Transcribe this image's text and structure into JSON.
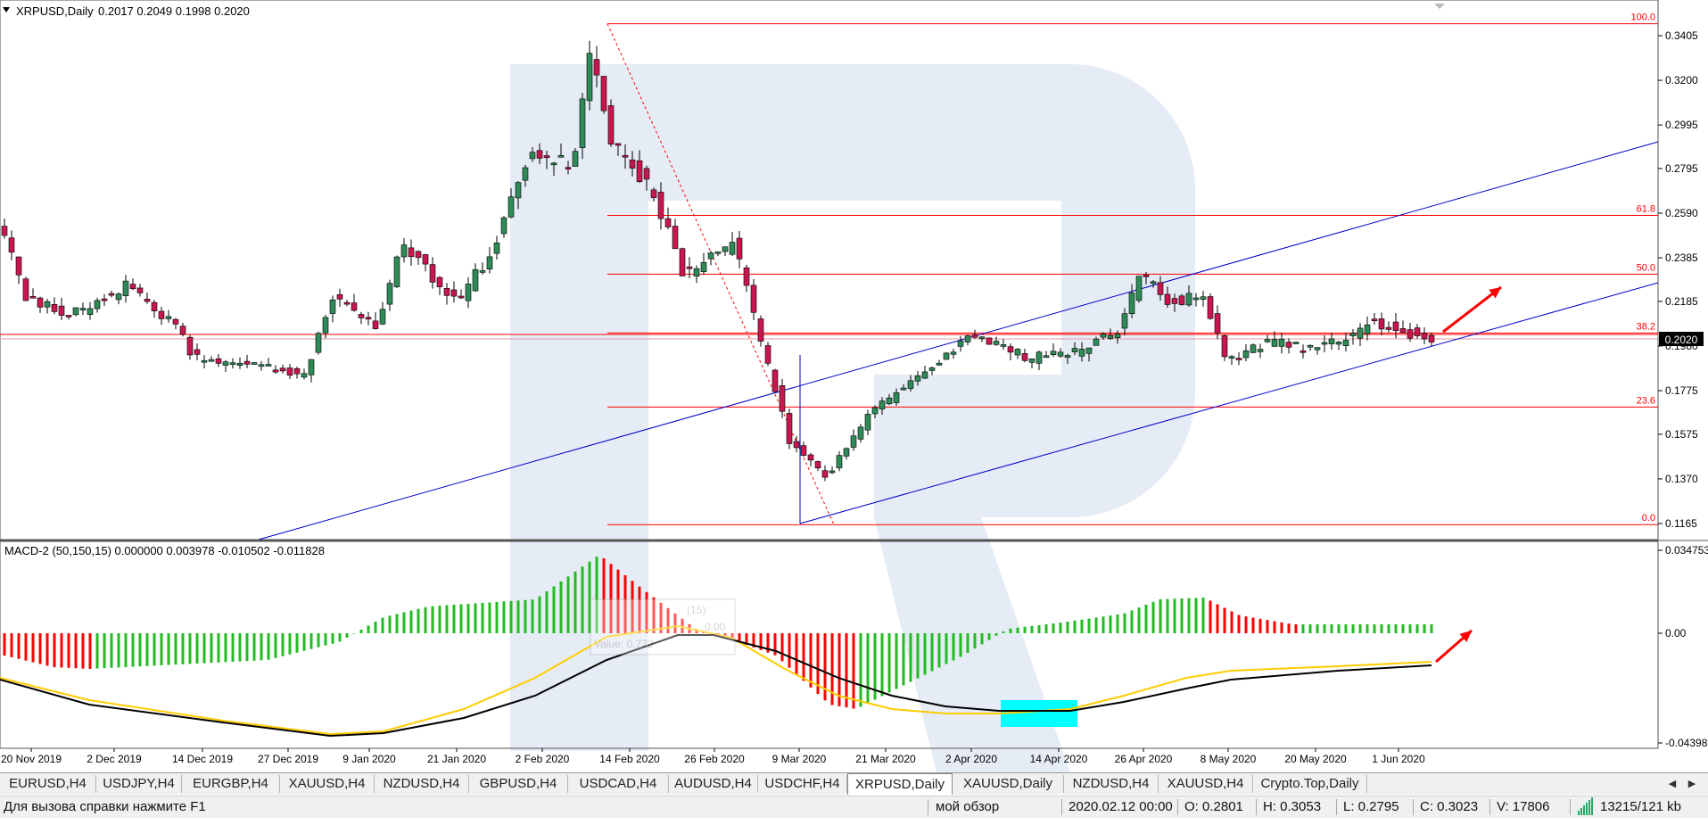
{
  "chart": {
    "symbol_info": "XRPUSD,Daily",
    "ohlc_header": "0.2017  0.2049  0.1998  0.2020",
    "price_axis_labels": [
      "0.3405",
      "0.3200",
      "0.2995",
      "0.2795",
      "0.2590",
      "0.2385",
      "0.2185",
      "0.1980",
      "0.1775",
      "0.1575",
      "0.1370",
      "0.1165"
    ],
    "current_price_label": "0.2020",
    "date_axis_labels": [
      "20 Nov 2019",
      "2 Dec 2019",
      "14 Dec 2019",
      "27 Dec 2019",
      "9 Jan 2020",
      "21 Jan 2020",
      "2 Feb 2020",
      "14 Feb 2020",
      "26 Feb 2020",
      "9 Mar 2020",
      "21 Mar 2020",
      "2 Apr 2020",
      "14 Apr 2020",
      "26 Apr 2020",
      "8 May 2020",
      "20 May 2020",
      "1 Jun 2020"
    ],
    "fib_levels": [
      {
        "label": "100.0",
        "value": 0.346
      },
      {
        "label": "61.8",
        "value": 0.258
      },
      {
        "label": "50.0",
        "value": 0.231
      },
      {
        "label": "38.2",
        "value": 0.204
      },
      {
        "label": "23.6",
        "value": 0.17
      },
      {
        "label": "0.0",
        "value": 0.116
      }
    ],
    "colors": {
      "bull": "#2e8b57",
      "bear": "#c8174f",
      "fib": "#ff0000",
      "channel": "#0000cc",
      "arrow": "#ff0000"
    }
  },
  "indicator": {
    "label": "MACD-2 (50,150,15) 0.000000 0.003978 -0.010502 -0.011828",
    "axis_labels": [
      "0.034753",
      "0.00",
      "-0.043986"
    ],
    "ghost_lines": [
      "(15)",
      "0.00",
      "Value: 0.772"
    ],
    "colors": {
      "up": "#22bb22",
      "down": "#ff0000",
      "main": "#000000",
      "signal": "#ffcc00",
      "highlight": "#00ffff"
    }
  },
  "tabs": [
    {
      "label": "EURUSD,H4",
      "active": false
    },
    {
      "label": "USDJPY,H4",
      "active": false
    },
    {
      "label": "EURGBP,H4",
      "active": false
    },
    {
      "label": "XAUUSD,H4",
      "active": false
    },
    {
      "label": "NZDUSD,H4",
      "active": false
    },
    {
      "label": "GBPUSD,H4",
      "active": false
    },
    {
      "label": "USDCAD,H4",
      "active": false
    },
    {
      "label": "AUDUSD,H4",
      "active": false
    },
    {
      "label": "USDCHF,H4",
      "active": false
    },
    {
      "label": "XRPUSD,Daily",
      "active": true
    },
    {
      "label": "XAUUSD,Daily",
      "active": false
    },
    {
      "label": "NZDUSD,H4",
      "active": false
    },
    {
      "label": "XAUUSD,H4",
      "active": false
    },
    {
      "label": "Crypto.Top,Daily",
      "active": false
    }
  ],
  "status": {
    "help": "Для вызова справки нажмите F1",
    "profile": "мой обзор",
    "datetime": "2020.02.12 00:00",
    "open": "O: 0.2801",
    "high": "H: 0.3053",
    "low": "L: 0.2795",
    "close": "C: 0.3023",
    "volume": "V: 17806",
    "traffic": "13215/121 kb"
  }
}
